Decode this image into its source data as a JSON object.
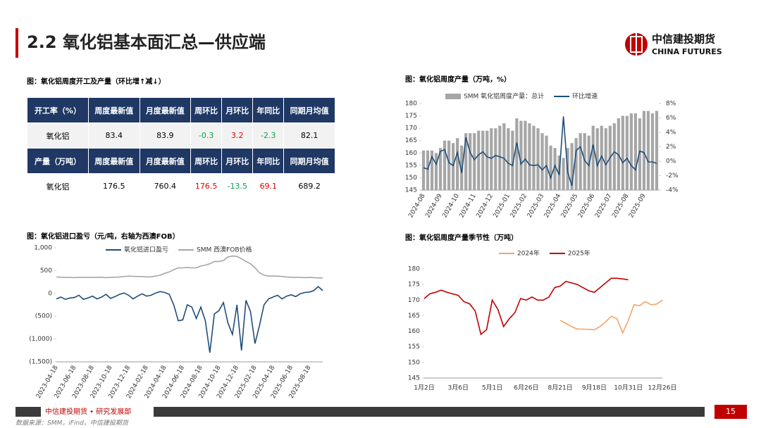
{
  "header": {
    "title": "2.2 氧化铝基本面汇总—供应端",
    "logo_cn": "中信建投期货",
    "logo_en": "CHINA FUTURES"
  },
  "table": {
    "title": "图：氧化铝周度开工及产量（环比增↑减↓）",
    "rows": [
      [
        "开工率（%）",
        "周度最新值",
        "月度最新值",
        "周环比",
        "月环比",
        "年同比",
        "同期月均值"
      ],
      [
        "氧化铝",
        83.4,
        83.9,
        -0.3,
        3.2,
        -2.3,
        82.1
      ],
      [
        "产量（万吨）",
        "周度最新值",
        "月度最新值",
        "周环比",
        "月环比",
        "年同比",
        "同期月均值"
      ],
      [
        "氧化铝",
        176.5,
        760.4,
        176.5,
        -13.5,
        69.1,
        689.2
      ]
    ]
  },
  "chart_data": [
    {
      "type": "combo",
      "title": "图：氧化铝周度产量（万吨，%）",
      "categories": [
        "2024-08",
        null,
        null,
        null,
        "2024-09",
        null,
        null,
        null,
        "2024-10",
        null,
        null,
        null,
        "2024-11",
        null,
        null,
        null,
        "2024-12",
        null,
        null,
        null,
        "2025-01",
        null,
        null,
        null,
        "2025-02",
        null,
        null,
        null,
        "2025-03",
        null,
        null,
        null,
        "2025-04",
        null,
        null,
        null,
        "2025-05",
        null,
        null,
        null,
        "2025-06",
        null,
        null,
        null,
        "2025-07",
        null,
        null,
        null,
        "2025-08",
        null,
        null,
        null,
        "2025-09",
        null,
        null,
        null
      ],
      "series": [
        {
          "name": "SMM 氧化铝周度产量：总计",
          "color": "#a6a6a6",
          "kind": "bar",
          "values": [
            161,
            161,
            161,
            160,
            162,
            165,
            165,
            164,
            166,
            163,
            168,
            168,
            168,
            169,
            169,
            169,
            170,
            170,
            171,
            172,
            170,
            169,
            174,
            173,
            173,
            172,
            171,
            170,
            168,
            167,
            163,
            162,
            159,
            158,
            162,
            164,
            166,
            168,
            168,
            167,
            171,
            170,
            171,
            170,
            171,
            172,
            174,
            175,
            175,
            176,
            176,
            174,
            177,
            177,
            176,
            177
          ]
        },
        {
          "name": "环比增速",
          "color": "#1f4e79",
          "kind": "line",
          "axis": "y2",
          "values": [
            -0.9,
            -1.1,
            0.6,
            -0.4,
            1.4,
            1.6,
            -0.2,
            -0.6,
            1.2,
            -1.6,
            3.3,
            1.2,
            0.2,
            0.9,
            1.3,
            0.6,
            0.4,
            0.8,
            0.6,
            0.4,
            -0.3,
            -0.6,
            2.6,
            -0.4,
            0.3,
            -0.5,
            -0.6,
            -0.5,
            -1.2,
            -0.6,
            -2.3,
            -0.6,
            -1.9,
            6.2,
            -1.5,
            -3.4,
            1.5,
            2.0,
            0.1,
            -0.6,
            2.3,
            -0.6,
            0.7,
            -0.5,
            0.5,
            1.3,
            0.9,
            -0.2,
            0.4,
            -0.6,
            -1.2,
            1.4,
            1.2,
            -0.1,
            -0.1,
            -0.3
          ]
        }
      ],
      "ylim": [
        145,
        180
      ],
      "yticks": [
        145,
        150,
        155,
        160,
        165,
        170,
        175,
        180
      ],
      "y2lim": [
        -4,
        8
      ],
      "y2ticks": [
        {
          "value": -4,
          "label": "-4%"
        },
        {
          "value": -2,
          "label": "-2%"
        },
        {
          "value": 0,
          "label": "0%"
        },
        {
          "value": 2,
          "label": "2%"
        },
        {
          "value": 4,
          "label": "4%"
        },
        {
          "value": 6,
          "label": "6%"
        },
        {
          "value": 8,
          "label": "8%"
        }
      ],
      "grid": false
    },
    {
      "type": "line",
      "title": "图：氧化铝进口盈亏（元/吨，右轴为西澳FOB）",
      "categories": [
        "2023-04-18",
        null,
        null,
        null,
        "2023-06-18",
        null,
        null,
        null,
        "2023-08-18",
        null,
        null,
        null,
        "2023-10-18",
        null,
        null,
        null,
        "2023-12-18",
        null,
        null,
        null,
        "2024-02-18",
        null,
        null,
        null,
        "2024-04-18",
        null,
        null,
        null,
        "2024-06-18",
        null,
        null,
        null,
        "2024-08-18",
        null,
        null,
        null,
        "2024-10-18",
        null,
        null,
        null,
        "2024-12-18",
        null,
        null,
        null,
        "2025-02-18",
        null,
        null,
        null,
        "2025-04-18",
        null,
        null,
        null,
        "2025-06-18",
        null,
        null,
        null,
        "2025-08-18",
        null,
        null,
        null
      ],
      "series": [
        {
          "name": "氧化铝进口盈亏",
          "color": "#1f4e79",
          "values": [
            -120,
            -80,
            -130,
            -100,
            -90,
            -40,
            -130,
            -100,
            -60,
            -120,
            -80,
            -20,
            -110,
            -70,
            -20,
            10,
            -40,
            -120,
            -60,
            -10,
            -60,
            -40,
            10,
            40,
            20,
            -20,
            -250,
            -600,
            -580,
            -250,
            -300,
            -550,
            -300,
            -600,
            -1300,
            -450,
            -380,
            -200,
            -650,
            -900,
            -250,
            -1250,
            -150,
            -400,
            -1100,
            -700,
            -250,
            -120,
            -80,
            -40,
            -120,
            -60,
            -30,
            -70,
            -10,
            20,
            30,
            60,
            150,
            60
          ]
        },
        {
          "name": "SMM 西澳FOB价格",
          "color": "#a6a6a6",
          "axis": "y2",
          "values": [
            360,
            355,
            350,
            350,
            345,
            350,
            350,
            350,
            350,
            350,
            355,
            345,
            350,
            355,
            360,
            370,
            380,
            375,
            370,
            370,
            360,
            365,
            380,
            400,
            440,
            470,
            520,
            560,
            560,
            570,
            560,
            560,
            600,
            620,
            650,
            700,
            700,
            720,
            800,
            820,
            810,
            760,
            700,
            650,
            560,
            450,
            400,
            380,
            380,
            380,
            370,
            360,
            355,
            350,
            350,
            345,
            350,
            345,
            340,
            340
          ]
        }
      ],
      "ylim": [
        -1500,
        1000
      ],
      "yticks": [
        {
          "value": 1000,
          "label": "1,000"
        },
        500,
        0,
        {
          "value": -500,
          "label": "(500)"
        },
        {
          "value": -1000,
          "label": "(1,000)"
        },
        {
          "value": -1500,
          "label": "(1,500)"
        }
      ],
      "y2lim": [
        -1500,
        1000
      ],
      "grid": false
    },
    {
      "type": "line",
      "title": "图：氧化铝周度产量季节性（万吨）",
      "categories": [
        "1月2日",
        null,
        null,
        null,
        null,
        null,
        "3月6日",
        null,
        null,
        null,
        null,
        null,
        "5月1日",
        null,
        null,
        null,
        null,
        null,
        "6月26日",
        null,
        null,
        null,
        null,
        null,
        "8月21日",
        null,
        null,
        null,
        null,
        null,
        "9月18日",
        null,
        null,
        null,
        null,
        null,
        "10月31日",
        null,
        null,
        null,
        null,
        null,
        "12月26日"
      ],
      "series": [
        {
          "name": "2024年",
          "color": "#f4a46a",
          "values": [
            null,
            null,
            null,
            null,
            null,
            null,
            null,
            null,
            null,
            null,
            null,
            null,
            null,
            null,
            null,
            null,
            null,
            null,
            null,
            null,
            null,
            null,
            null,
            null,
            163.5,
            162.5,
            161.5,
            160.7,
            160.7,
            160.6,
            160.5,
            161.5,
            163,
            164.8,
            164,
            159.5,
            163.5,
            168.5,
            168.2,
            169.5,
            168.5,
            168.7,
            170
          ]
        },
        {
          "name": "2025年",
          "color": "#c00000",
          "values": [
            170.5,
            172,
            172.5,
            173.2,
            172.5,
            172,
            171.5,
            169.5,
            168.8,
            166.5,
            159,
            160.5,
            170,
            167,
            161.5,
            164,
            166,
            170.5,
            170,
            171,
            170,
            170,
            171,
            174,
            174.5,
            176,
            175.5,
            175,
            174,
            173,
            172.5,
            174,
            175.5,
            177,
            177,
            176.8,
            176.5,
            null,
            null,
            null,
            null,
            null,
            null
          ]
        }
      ],
      "ylim": [
        145,
        180
      ],
      "yticks": [
        145,
        150,
        155,
        160,
        165,
        170,
        175,
        180
      ],
      "grid": false
    }
  ],
  "footer": {
    "department": "中信建投期货 • 研究发展部",
    "page": "15",
    "source": "数据来源：SMM，iFind，中信建投期货"
  }
}
